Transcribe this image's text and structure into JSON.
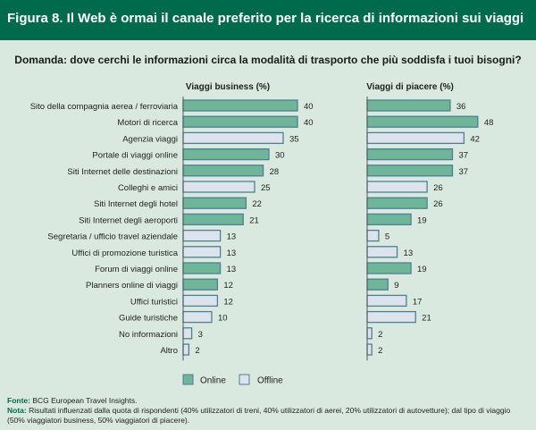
{
  "header": {
    "title": "Figura 8. Il Web è ormai il canale preferito per la ricerca di informazioni sui viaggi"
  },
  "question": "Domanda: dove cerchi le informazioni circa la modalità di trasporto che più soddisfa i tuoi bisogni?",
  "colors": {
    "online": "#6fb59a",
    "offline": "#dde3ec",
    "border": "#4e7f94",
    "header": "#006a4d",
    "background": "#d9e9df"
  },
  "chart_data": {
    "type": "bar",
    "orientation": "horizontal",
    "categories": [
      "Sito della compagnia aerea / ferroviaria",
      "Motori di ricerca",
      "Agenzia viaggi",
      "Portale di viaggi online",
      "Siti Internet delle destinazioni",
      "Colleghi e amici",
      "Siti Internet degli hotel",
      "Siti Internet degli aeroporti",
      "Segretaria / ufficio travel aziendale",
      "Uffici di promozione turistica",
      "Forum di viaggi online",
      "Planners online di viaggi",
      "Uffici turistici",
      "Guide turistiche",
      "No informazioni",
      "Altro"
    ],
    "channel": [
      "online",
      "online",
      "offline",
      "online",
      "online",
      "offline",
      "online",
      "online",
      "offline",
      "offline",
      "online",
      "online",
      "offline",
      "offline",
      "offline",
      "offline"
    ],
    "series": [
      {
        "name": "Viaggi business (%)",
        "values": [
          40,
          40,
          35,
          30,
          28,
          25,
          22,
          21,
          13,
          13,
          13,
          12,
          12,
          10,
          3,
          2
        ]
      },
      {
        "name": "Viaggi di piacere (%)",
        "values": [
          36,
          48,
          42,
          37,
          37,
          26,
          26,
          19,
          5,
          13,
          19,
          9,
          17,
          21,
          2,
          2
        ]
      }
    ],
    "legend": {
      "items": [
        "Online",
        "Offline"
      ],
      "placement": "bottom-center"
    },
    "grid": false
  },
  "footer": {
    "source_label": "Fonte:",
    "source_text": " BCG European Travel Insights.",
    "note_label": "Nota:",
    "note_text": " Risultati influenzati dalla quota di rispondenti (40% utilizzatori di treni, 40% utilizzatori di aerei, 20% utilizzatori di autovetture); dal tipo di viaggio (50% viaggiatori business, 50% viaggiatori di piacere)."
  }
}
